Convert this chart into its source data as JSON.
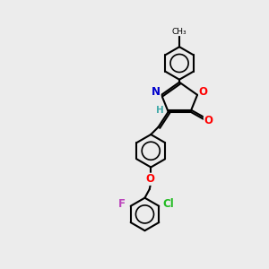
{
  "background_color": "#ececec",
  "bond_color": "#000000",
  "atom_colors": {
    "N": "#0000cc",
    "O": "#ff0000",
    "F": "#bb44bb",
    "Cl": "#22bb22",
    "C": "#000000",
    "H": "#44aaaa"
  }
}
